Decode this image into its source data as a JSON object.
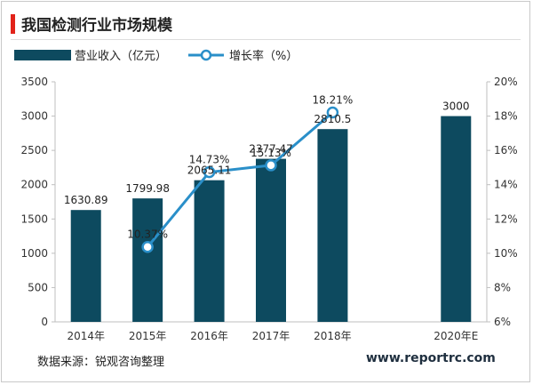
{
  "page": {
    "title": "我国检测行业市场规模",
    "source": "数据来源：锐观咨询整理",
    "watermark": "www.reportrc.com"
  },
  "colors": {
    "bar": "#0d4a5f",
    "line": "#2a8fc9",
    "title_accent": "#e2231a"
  },
  "chart_data": {
    "type": "bar",
    "title": "",
    "categories": [
      "2014年",
      "2015年",
      "2016年",
      "2017年",
      "2018年",
      "",
      "2020年E"
    ],
    "series": [
      {
        "name": "营业收入（亿元）",
        "type": "bar",
        "axis": "left",
        "values": [
          1630.89,
          1799.98,
          2065.11,
          2377.47,
          2810.5,
          null,
          3000
        ],
        "labels": [
          "1630.89",
          "1799.98",
          "2065.11",
          "2377.47",
          "2810.5",
          "",
          "3000"
        ]
      },
      {
        "name": "增长率（%）",
        "type": "line",
        "axis": "right",
        "values": [
          null,
          10.37,
          14.73,
          15.13,
          18.21,
          null,
          null
        ],
        "labels": [
          "",
          "10.37%",
          "14.73%",
          "15.13%",
          "18.21%",
          "",
          ""
        ]
      }
    ],
    "y_left": {
      "ylim": [
        0,
        3500
      ],
      "ticks": [
        "0",
        "500",
        "1000",
        "1500",
        "2000",
        "2500",
        "3000",
        "3500"
      ]
    },
    "y_right": {
      "ylim": [
        6,
        20
      ],
      "ticks": [
        "6%",
        "8%",
        "10%",
        "12%",
        "14%",
        "16%",
        "18%",
        "20%"
      ]
    },
    "legend_position": "top-left",
    "grid": false
  }
}
